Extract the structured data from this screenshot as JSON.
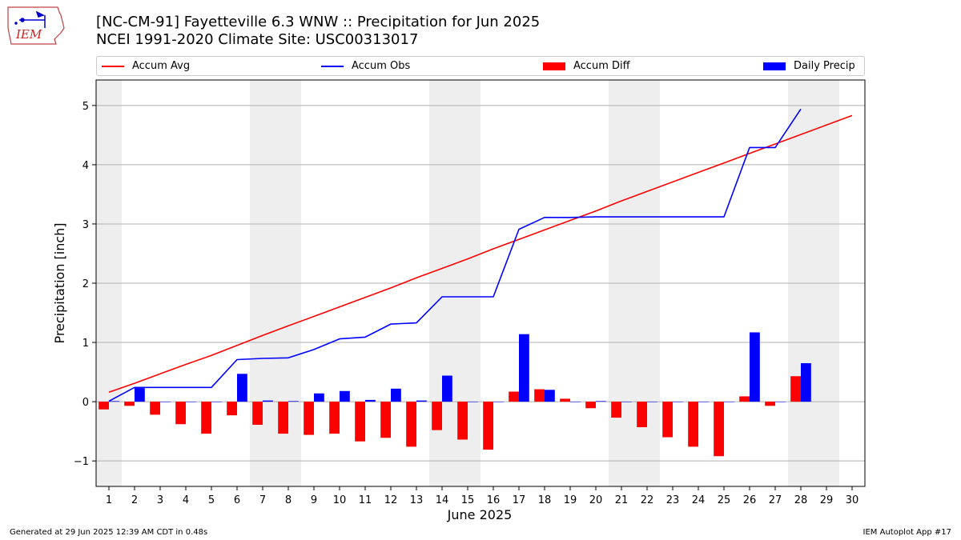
{
  "header": {
    "title_line1": "[NC-CM-91] Fayetteville 6.3 WNW :: Precipitation for Jun 2025",
    "title_line2": "NCEI 1991-2020 Climate Site: USC00313017",
    "logo_text": "IEM"
  },
  "footer": {
    "generated": "Generated at 29 Jun 2025 12:39 AM CDT in 0.48s",
    "app": "IEM Autoplot App #17"
  },
  "colors": {
    "accum_avg": "#ff0000",
    "accum_obs": "#0000ff",
    "accum_diff": "#ff0000",
    "daily_precip": "#0000ff",
    "weekend_shade": "#eeeeee",
    "grid": "#b0b0b0"
  },
  "chart_data": {
    "type": "bar",
    "xlabel": "June 2025",
    "ylabel": "Precipitation [inch]",
    "xlim": [
      0.5,
      30.5
    ],
    "ylim": [
      -1.43,
      5.43
    ],
    "grid": "horizontal",
    "legend_placement": "top",
    "days": [
      1,
      2,
      3,
      4,
      5,
      6,
      7,
      8,
      9,
      10,
      11,
      12,
      13,
      14,
      15,
      16,
      17,
      18,
      19,
      20,
      21,
      22,
      23,
      24,
      25,
      26,
      27,
      28,
      29,
      30
    ],
    "x_tick_labels": [
      "1",
      "2",
      "3",
      "4",
      "5",
      "6",
      "7",
      "8",
      "9",
      "10",
      "11",
      "12",
      "13",
      "14",
      "15",
      "16",
      "17",
      "18",
      "19",
      "20",
      "21",
      "22",
      "23",
      "24",
      "25",
      "26",
      "27",
      "28",
      "29",
      "30"
    ],
    "y_ticks": [
      -1,
      0,
      1,
      2,
      3,
      4,
      5
    ],
    "y_tick_labels": [
      "−1",
      "0",
      "1",
      "2",
      "3",
      "4",
      "5"
    ],
    "weekend_days": [
      1,
      7,
      8,
      14,
      15,
      21,
      22,
      28,
      29
    ],
    "series": [
      {
        "name": "Accum Avg",
        "kind": "line",
        "values": [
          0.16,
          0.31,
          0.47,
          0.63,
          0.78,
          0.95,
          1.12,
          1.28,
          1.44,
          1.6,
          1.76,
          1.92,
          2.09,
          2.25,
          2.41,
          2.58,
          2.74,
          2.9,
          3.06,
          3.22,
          3.39,
          3.55,
          3.71,
          3.87,
          4.03,
          4.19,
          4.35,
          4.51,
          4.67,
          4.83
        ]
      },
      {
        "name": "Accum Obs",
        "kind": "line",
        "values": [
          0.01,
          0.24,
          0.24,
          0.24,
          0.24,
          0.71,
          0.73,
          0.74,
          0.88,
          1.06,
          1.09,
          1.31,
          1.33,
          1.77,
          1.77,
          1.77,
          2.91,
          3.11,
          3.11,
          3.12,
          3.12,
          3.12,
          3.12,
          3.12,
          3.12,
          4.29,
          4.29,
          4.94,
          null,
          null
        ]
      },
      {
        "name": "Accum Diff",
        "kind": "bar",
        "values": [
          -0.13,
          -0.07,
          -0.22,
          -0.38,
          -0.54,
          -0.23,
          -0.39,
          -0.54,
          -0.56,
          -0.54,
          -0.67,
          -0.61,
          -0.76,
          -0.48,
          -0.64,
          -0.81,
          0.17,
          0.21,
          0.05,
          -0.11,
          -0.27,
          -0.43,
          -0.6,
          -0.76,
          -0.92,
          0.09,
          -0.07,
          0.43,
          null,
          null
        ]
      },
      {
        "name": "Daily Precip",
        "kind": "bar",
        "values": [
          0.01,
          0.23,
          0,
          0,
          0,
          0.47,
          0.02,
          0.01,
          0.14,
          0.18,
          0.03,
          0.22,
          0.02,
          0.44,
          0,
          0,
          1.14,
          0.2,
          0,
          0.01,
          0,
          0,
          0,
          0,
          0,
          1.17,
          0,
          0.65,
          null,
          null
        ]
      }
    ]
  }
}
